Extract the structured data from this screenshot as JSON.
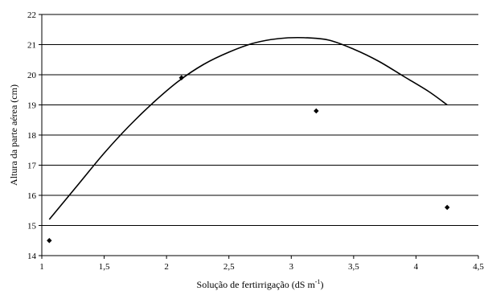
{
  "chart_data": {
    "type": "scatter",
    "title": "",
    "xlabel": "Solução de fertirrigação (dS m",
    "xlabel_sup": "-1",
    "xlabel_suffix": ")",
    "ylabel": "Altura da parte aérea (cm)",
    "xlim": [
      1,
      4.5
    ],
    "ylim": [
      14,
      22
    ],
    "xticks": [
      1,
      1.5,
      2,
      2.5,
      3,
      3.5,
      4,
      4.5
    ],
    "xtick_labels": [
      "1",
      "1,5",
      "2",
      "2,5",
      "3",
      "3,5",
      "4",
      "4,5"
    ],
    "yticks": [
      14,
      15,
      16,
      17,
      18,
      19,
      20,
      21,
      22
    ],
    "ytick_labels": [
      "14",
      "15",
      "16",
      "17",
      "18",
      "19",
      "20",
      "21",
      "22"
    ],
    "grid": "horizontal",
    "legend": "none",
    "series": [
      {
        "kind": "points",
        "marker": "diamond",
        "color": "#000000",
        "x": [
          1.06,
          2.12,
          3.2,
          4.25
        ],
        "y": [
          14.5,
          19.9,
          18.8,
          15.6
        ]
      },
      {
        "kind": "curve",
        "color": "#000000",
        "x": [
          1.06,
          1.3,
          1.5,
          1.7,
          1.9,
          2.1,
          2.3,
          2.5,
          2.7,
          2.9,
          3.1,
          3.3,
          3.5,
          3.7,
          3.9,
          4.1,
          4.25
        ],
        "y": [
          15.2,
          16.4,
          17.4,
          18.3,
          19.1,
          19.8,
          20.35,
          20.75,
          21.05,
          21.2,
          21.23,
          21.15,
          20.85,
          20.45,
          19.95,
          19.45,
          19.0
        ]
      }
    ]
  }
}
